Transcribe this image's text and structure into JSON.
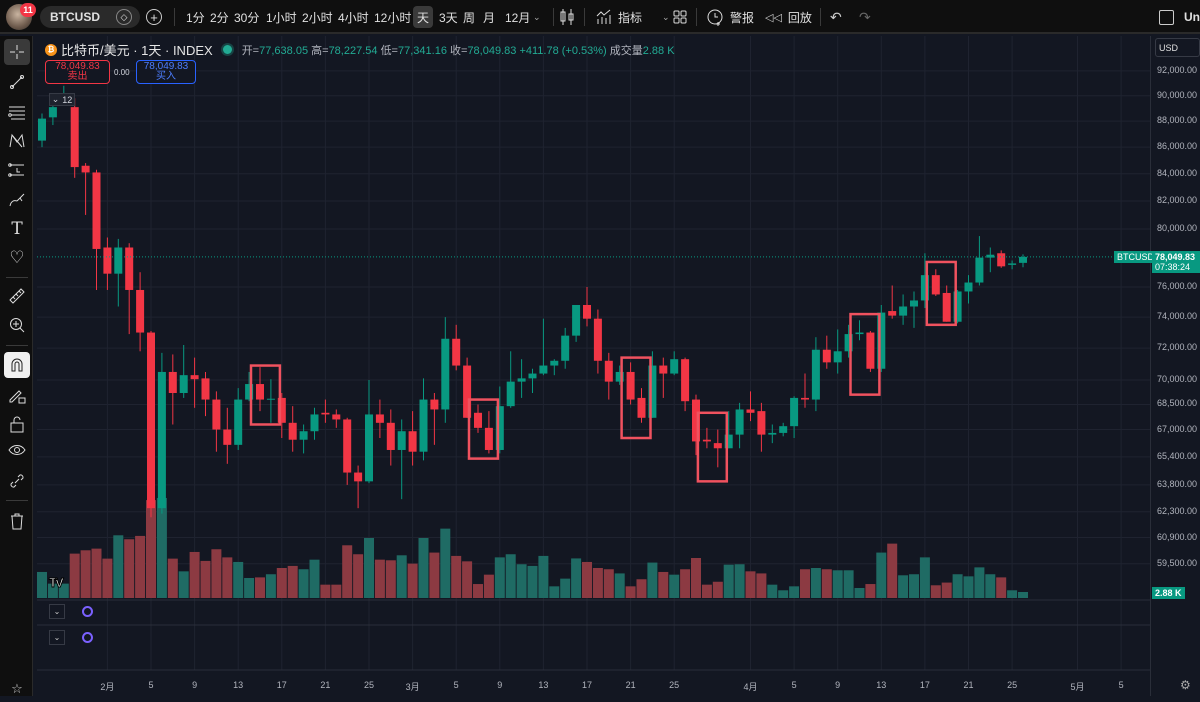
{
  "topbar": {
    "notification_count": "11",
    "symbol": "BTCUSD",
    "timeframes": [
      "1分",
      "2分",
      "30分",
      "1小时",
      "2小时",
      "4小时",
      "12小时",
      "天",
      "3天",
      "周",
      "月",
      "12月"
    ],
    "active_timeframe": "天",
    "indicators_label": "指标",
    "alert_label": "警报",
    "replay_label": "回放",
    "right_cut_label": "Un"
  },
  "legend": {
    "title": "比特币/美元 · 1天 · INDEX",
    "open_label": "开=",
    "open": "77,638.05",
    "high_label": "高=",
    "high": "78,227.54",
    "low_label": "低=",
    "low": "77,341.16",
    "close_label": "收=",
    "close": "78,049.83",
    "change": "+411.78 (+0.53%)",
    "volume_label": "成交量",
    "volume": "2.88 K",
    "collapse_count": "12"
  },
  "trade": {
    "sell_price": "78,049.83",
    "sell_label": "卖出",
    "spread": "0.00",
    "buy_price": "78,049.83",
    "buy_label": "买入"
  },
  "price_axis": {
    "currency": "USD",
    "symbol_tag": "BTCUSD",
    "last_price": "78,049.83",
    "countdown": "07:38:24",
    "volume_tag": "2.88 K"
  },
  "colors": {
    "up": "#089981",
    "down": "#f23645",
    "volume_up": "#1f6b64",
    "volume_down": "#8c3a42",
    "annotation": "#f0525f",
    "background": "#131722"
  },
  "chart_data": {
    "type": "candlestick",
    "symbol": "BTCUSD",
    "interval": "1D",
    "y_scale": "log",
    "grid": true,
    "y_ticks": [
      92000,
      90000,
      88000,
      86000,
      84000,
      82000,
      80000,
      76000,
      74000,
      72000,
      70000,
      68500,
      67000,
      65400,
      63800,
      62300,
      60900,
      59500
    ],
    "x_ticks": [
      {
        "label": "2月",
        "date": "2-1"
      },
      {
        "label": "5",
        "date": "2-5"
      },
      {
        "label": "9",
        "date": "2-9"
      },
      {
        "label": "13",
        "date": "2-13"
      },
      {
        "label": "17",
        "date": "2-17"
      },
      {
        "label": "21",
        "date": "2-21"
      },
      {
        "label": "25",
        "date": "2-25"
      },
      {
        "label": "3月",
        "date": "3-1"
      },
      {
        "label": "5",
        "date": "3-5"
      },
      {
        "label": "9",
        "date": "3-9"
      },
      {
        "label": "13",
        "date": "3-13"
      },
      {
        "label": "17",
        "date": "3-17"
      },
      {
        "label": "21",
        "date": "3-21"
      },
      {
        "label": "25",
        "date": "3-25"
      },
      {
        "label": "4月",
        "date": "4-1"
      },
      {
        "label": "5",
        "date": "4-5"
      },
      {
        "label": "9",
        "date": "4-9"
      },
      {
        "label": "13",
        "date": "4-13"
      },
      {
        "label": "17",
        "date": "4-17"
      },
      {
        "label": "21",
        "date": "4-21"
      },
      {
        "label": "25",
        "date": "4-25"
      },
      {
        "label": "5月",
        "date": "5-1"
      },
      {
        "label": "5",
        "date": "5-5"
      }
    ],
    "columns": [
      "date",
      "open",
      "high",
      "low",
      "close",
      "volume_k"
    ],
    "candles": [
      [
        "1-26",
        86500,
        88600,
        86000,
        88200,
        12.5
      ],
      [
        "1-27",
        88300,
        89500,
        87700,
        89100,
        6.9
      ],
      [
        "1-28",
        89500,
        90800,
        89200,
        89700,
        6.9
      ],
      [
        "1-29",
        89100,
        89800,
        83700,
        84500,
        21.3
      ],
      [
        "1-30",
        84600,
        84800,
        81000,
        84100,
        22.9
      ],
      [
        "1-31",
        84100,
        84300,
        75800,
        78600,
        23.7
      ],
      [
        "2-1",
        78700,
        79400,
        75800,
        76900,
        18.9
      ],
      [
        "2-2",
        76900,
        79300,
        74700,
        78700,
        30.1
      ],
      [
        "2-3",
        78700,
        79000,
        72900,
        75800,
        28.2
      ],
      [
        "2-4",
        75800,
        77000,
        71800,
        73000,
        29.8
      ],
      [
        "2-5",
        73000,
        73100,
        62000,
        62500,
        47
      ],
      [
        "2-6",
        62500,
        71700,
        62200,
        70500,
        48
      ],
      [
        "2-7",
        70500,
        71600,
        67300,
        69200,
        18.9
      ],
      [
        "2-8",
        69200,
        72200,
        68900,
        70300,
        12.8
      ],
      [
        "2-9",
        70300,
        71400,
        68300,
        70050,
        22.1
      ],
      [
        "2-10",
        70100,
        70500,
        67800,
        68800,
        17.8
      ],
      [
        "2-11",
        68800,
        69300,
        65700,
        67000,
        23.4
      ],
      [
        "2-12",
        67000,
        68300,
        65000,
        66100,
        19.5
      ],
      [
        "2-13",
        66100,
        69500,
        65800,
        68800,
        17.3
      ],
      [
        "2-14",
        68800,
        70500,
        68700,
        69750,
        9.6
      ],
      [
        "2-15",
        69750,
        70800,
        68100,
        68800,
        9.9
      ],
      [
        "2-16",
        68800,
        70050,
        67400,
        68850,
        11.4
      ],
      [
        "2-17",
        68900,
        69200,
        66500,
        67400,
        14.4
      ],
      [
        "2-18",
        67400,
        68400,
        65700,
        66400,
        15.4
      ],
      [
        "2-19",
        66400,
        67300,
        65600,
        66900,
        13.8
      ],
      [
        "2-20",
        66900,
        68300,
        66400,
        67900,
        18.4
      ],
      [
        "2-21",
        68000,
        68800,
        67400,
        67900,
        6.4
      ],
      [
        "2-22",
        67900,
        68200,
        67100,
        67600,
        6.4
      ],
      [
        "2-23",
        67600,
        67700,
        63800,
        64500,
        25.3
      ],
      [
        "2-24",
        64500,
        64900,
        62500,
        64000,
        21
      ],
      [
        "2-25",
        64000,
        70000,
        63900,
        67900,
        28.8
      ],
      [
        "2-26",
        67900,
        68800,
        66500,
        67400,
        18.4
      ],
      [
        "2-27",
        67400,
        68200,
        64900,
        65800,
        18.1
      ],
      [
        "2-28",
        65800,
        67600,
        63000,
        66900,
        20.5
      ],
      [
        "3-1",
        66900,
        68100,
        64900,
        65700,
        16.5
      ],
      [
        "3-2",
        65700,
        70100,
        65200,
        68800,
        28.8
      ],
      [
        "3-3",
        68800,
        69200,
        66100,
        68200,
        21.8
      ],
      [
        "3-4",
        68200,
        74000,
        67400,
        72600,
        33.3
      ],
      [
        "3-5",
        72600,
        73500,
        70600,
        70900,
        20.2
      ],
      [
        "3-6",
        70900,
        71400,
        67700,
        67700,
        17.6
      ],
      [
        "3-7",
        68000,
        68500,
        66800,
        67100,
        6.7
      ],
      [
        "3-8",
        67100,
        68100,
        65600,
        65800,
        11.2
      ],
      [
        "3-9",
        65800,
        69600,
        65600,
        68400,
        19.5
      ],
      [
        "3-10",
        68400,
        71800,
        68300,
        69900,
        21
      ],
      [
        "3-11",
        69900,
        71300,
        68900,
        70100,
        16.2
      ],
      [
        "3-12",
        70100,
        70700,
        69200,
        70400,
        15.4
      ],
      [
        "3-13",
        70400,
        73900,
        70300,
        70900,
        20.2
      ],
      [
        "3-14",
        70900,
        71300,
        70300,
        71200,
        5.6
      ],
      [
        "3-15",
        71200,
        73300,
        70700,
        72800,
        9.3
      ],
      [
        "3-16",
        72800,
        74800,
        72400,
        74800,
        19
      ],
      [
        "3-17",
        74800,
        76000,
        73400,
        73900,
        17.3
      ],
      [
        "3-18",
        73900,
        74500,
        70400,
        71200,
        14.4
      ],
      [
        "3-19",
        71200,
        71700,
        68800,
        69900,
        13.8
      ],
      [
        "3-20",
        69900,
        70900,
        69700,
        70500,
        11.8
      ],
      [
        "3-21",
        70500,
        71100,
        68500,
        68800,
        5.6
      ],
      [
        "3-22",
        68900,
        69500,
        67400,
        67700,
        9
      ],
      [
        "3-23",
        67700,
        71800,
        67700,
        70900,
        17
      ],
      [
        "3-24",
        70900,
        71400,
        68900,
        70400,
        12.5
      ],
      [
        "3-25",
        70400,
        71800,
        70300,
        71300,
        11.2
      ],
      [
        "3-26",
        71300,
        71400,
        68100,
        68700,
        13.8
      ],
      [
        "3-27",
        68800,
        69100,
        65500,
        66300,
        19.2
      ],
      [
        "3-28",
        66400,
        67100,
        65900,
        66300,
        6.4
      ],
      [
        "3-29",
        66200,
        67000,
        64800,
        65900,
        7.8
      ],
      [
        "3-30",
        65900,
        68100,
        65900,
        66700,
        16
      ],
      [
        "3-31",
        66700,
        68600,
        65900,
        68200,
        16.2
      ],
      [
        "4-1",
        68200,
        69300,
        67500,
        68000,
        12.8
      ],
      [
        "4-2",
        68100,
        68600,
        65700,
        66700,
        11.8
      ],
      [
        "4-3",
        66700,
        67300,
        66200,
        66800,
        6.4
      ],
      [
        "4-4",
        66800,
        67400,
        66600,
        67200,
        3.7
      ],
      [
        "4-5",
        67200,
        69000,
        66500,
        68900,
        5.6
      ],
      [
        "4-6",
        68900,
        70400,
        68300,
        68800,
        13.8
      ],
      [
        "4-7",
        68800,
        72700,
        68100,
        71900,
        14.4
      ],
      [
        "4-8",
        71900,
        72800,
        70700,
        71100,
        13.8
      ],
      [
        "4-9",
        71100,
        73200,
        70400,
        71800,
        13.3
      ],
      [
        "4-10",
        71800,
        73500,
        71400,
        72900,
        13.3
      ],
      [
        "4-11",
        72900,
        73800,
        72500,
        73000,
        4.8
      ],
      [
        "4-12",
        73000,
        73100,
        70500,
        70700,
        6.7
      ],
      [
        "4-13",
        70700,
        74800,
        70500,
        74300,
        21.8
      ],
      [
        "4-14",
        74400,
        76100,
        73900,
        74100,
        26.1
      ],
      [
        "4-15",
        74100,
        75500,
        73500,
        74700,
        10.9
      ],
      [
        "4-16",
        74700,
        75700,
        73300,
        75100,
        11.4
      ],
      [
        "4-17",
        75100,
        78300,
        74600,
        76800,
        19.5
      ],
      [
        "4-18",
        76800,
        77200,
        75400,
        75500,
        6.1
      ],
      [
        "4-19",
        75600,
        76100,
        73700,
        73700,
        7.4
      ],
      [
        "4-20",
        73700,
        75800,
        73600,
        75700,
        11.4
      ],
      [
        "4-21",
        75700,
        76800,
        74900,
        76300,
        10.4
      ],
      [
        "4-22",
        76300,
        79500,
        76100,
        78000,
        14.7
      ],
      [
        "4-23",
        78000,
        78700,
        77000,
        78200,
        11.4
      ],
      [
        "4-24",
        78300,
        78500,
        77300,
        77400,
        9.9
      ],
      [
        "4-25",
        77500,
        77800,
        77200,
        77600,
        3.7
      ],
      [
        "4-26",
        77638.05,
        78227.54,
        77341.16,
        78049.83,
        2.88
      ]
    ],
    "last_price": 78049.83,
    "annotations": [
      {
        "type": "rectangle",
        "from": "2-15",
        "to": "2-16",
        "price_top": 70900,
        "price_bottom": 67300
      },
      {
        "type": "rectangle",
        "from": "3-7",
        "to": "3-8",
        "price_top": 68800,
        "price_bottom": 65300
      },
      {
        "type": "rectangle",
        "from": "3-21",
        "to": "3-22",
        "price_top": 71400,
        "price_bottom": 66500
      },
      {
        "type": "rectangle",
        "from": "3-28",
        "to": "3-29",
        "price_top": 68000,
        "price_bottom": 64000
      },
      {
        "type": "rectangle",
        "from": "4-11",
        "to": "4-12",
        "price_top": 74200,
        "price_bottom": 69100
      },
      {
        "type": "rectangle",
        "from": "4-18",
        "to": "4-19",
        "price_top": 77700,
        "price_bottom": 73500
      }
    ]
  }
}
